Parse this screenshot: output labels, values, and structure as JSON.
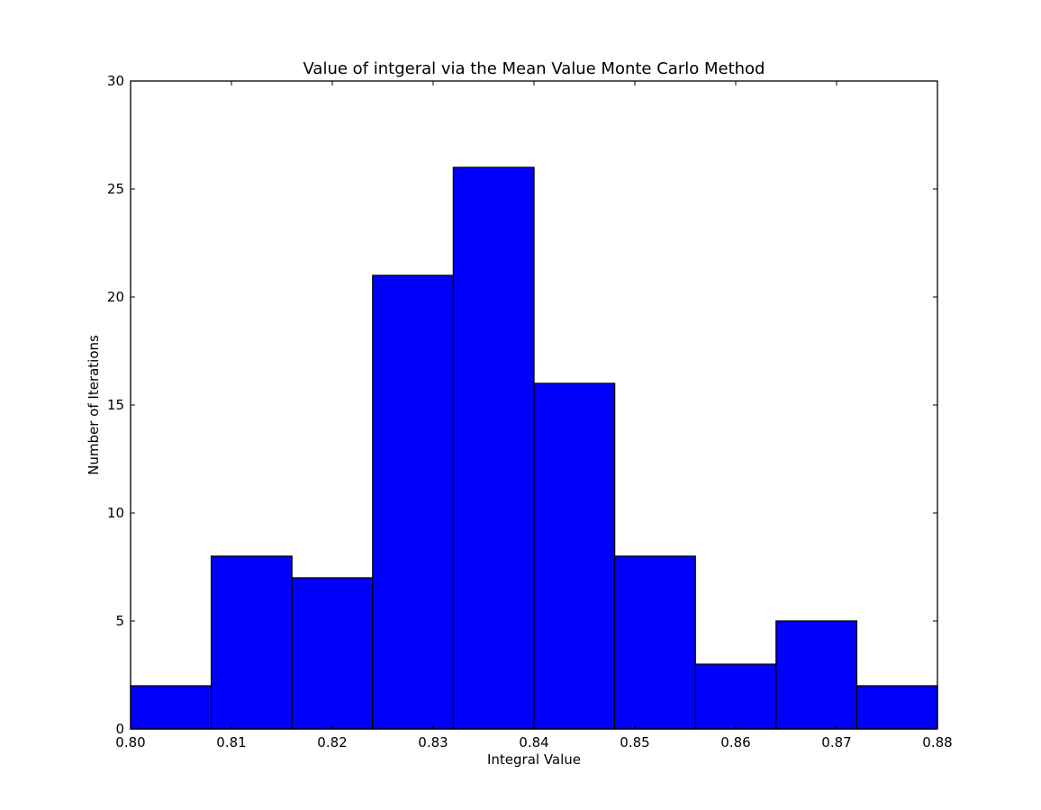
{
  "chart_data": {
    "type": "bar",
    "title": "Value of intgeral via the Mean Value Monte Carlo Method",
    "xlabel": "Integral Value",
    "ylabel": "Number of Iterations",
    "bin_edges": [
      0.8,
      0.808,
      0.816,
      0.824,
      0.832,
      0.84,
      0.848,
      0.856,
      0.864,
      0.872,
      0.88
    ],
    "values": [
      2,
      8,
      7,
      21,
      26,
      16,
      8,
      3,
      5,
      2
    ],
    "xlim": [
      0.8,
      0.88
    ],
    "ylim": [
      0,
      30
    ],
    "xticks": [
      "0.80",
      "0.81",
      "0.82",
      "0.83",
      "0.84",
      "0.85",
      "0.86",
      "0.87",
      "0.88"
    ],
    "yticks": [
      "0",
      "5",
      "10",
      "15",
      "20",
      "25",
      "30"
    ],
    "bar_color": "#0000ff",
    "edge_color": "#000000",
    "grid": false,
    "legend": "none"
  }
}
